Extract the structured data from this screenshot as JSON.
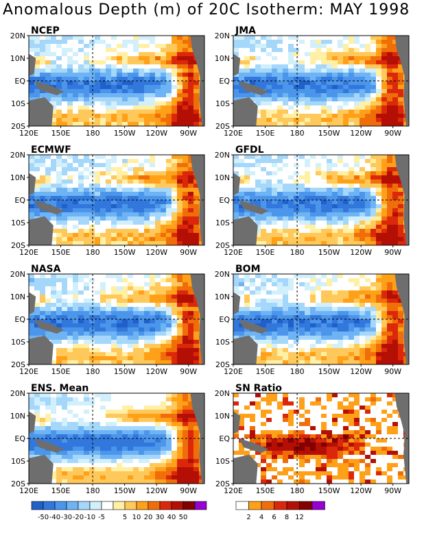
{
  "title": "Anomalous Depth (m) of 20C Isotherm: MAY 1998",
  "panels": [
    {
      "key": "ncep",
      "title": "NCEP"
    },
    {
      "key": "jma",
      "title": "JMA"
    },
    {
      "key": "ecmwf",
      "title": "ECMWF"
    },
    {
      "key": "gfdl",
      "title": "GFDL"
    },
    {
      "key": "nasa",
      "title": "NASA"
    },
    {
      "key": "bom",
      "title": "BOM"
    },
    {
      "key": "ens",
      "title": "ENS. Mean"
    },
    {
      "key": "sn",
      "title": "SN Ratio"
    }
  ],
  "lat_ticks": [
    "20N",
    "10N",
    "EQ",
    "10S",
    "20S"
  ],
  "lon_ticks": [
    "120E",
    "150E",
    "180",
    "150W",
    "120W",
    "90W"
  ],
  "anomaly_colorbar": {
    "colors": [
      "#2060c8",
      "#3278dc",
      "#4b96eb",
      "#6eb4f5",
      "#a5d7fa",
      "#d2f0fc",
      "#ffffff",
      "#fff0a5",
      "#ffc85a",
      "#ffa019",
      "#f06e0a",
      "#dc280a",
      "#b40f05",
      "#820000",
      "#9600d2"
    ],
    "labels": [
      "-50",
      "-40",
      "-30",
      "-20",
      "-10",
      "-5",
      "5",
      "10",
      "20",
      "30",
      "40",
      "50"
    ]
  },
  "sn_colorbar": {
    "colors": [
      "#ffffff",
      "#ffa019",
      "#f06e0a",
      "#dc280a",
      "#b40f05",
      "#820000",
      "#9600d2"
    ],
    "labels": [
      "2",
      "4",
      "6",
      "8",
      "12"
    ]
  },
  "land_color": "#6e6e6e",
  "icons": [
    "land-mask",
    "equator-line",
    "dateline"
  ]
}
